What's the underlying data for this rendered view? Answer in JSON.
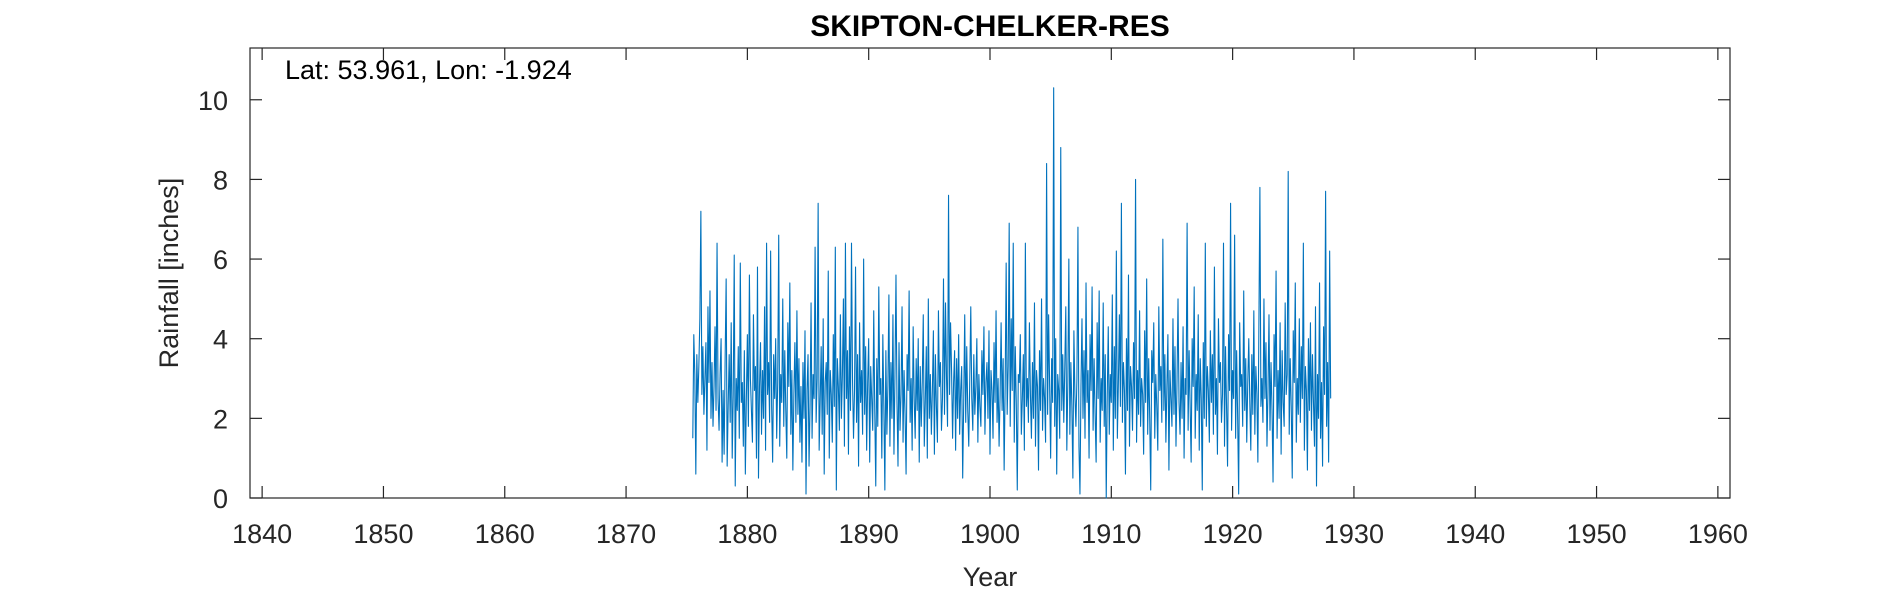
{
  "chart_data": {
    "type": "line",
    "title": "SKIPTON-CHELKER-RES",
    "xlabel": "Year",
    "ylabel": "Rainfall [inches]",
    "annotation": "Lat: 53.961, Lon: -1.924",
    "xlim": [
      1839,
      1961
    ],
    "ylim": [
      0,
      11.3
    ],
    "xticks": [
      1840,
      1850,
      1860,
      1870,
      1880,
      1890,
      1900,
      1910,
      1920,
      1930,
      1940,
      1950,
      1960
    ],
    "yticks": [
      0,
      2,
      4,
      6,
      8,
      10
    ],
    "grid": false,
    "series_color": "#0072BD",
    "series": [
      {
        "start_year": 1875.5,
        "step_years": 0.08333,
        "values": [
          1.5,
          4.1,
          3.1,
          0.6,
          3.6,
          2.4,
          3.3,
          4.5,
          7.2,
          2.6,
          3.8,
          2.1,
          3.0,
          3.9,
          1.2,
          4.8,
          2.9,
          5.2,
          2.0,
          3.4,
          1.8,
          2.8,
          4.3,
          2.2,
          6.4,
          2.5,
          1.7,
          3.1,
          4.0,
          0.9,
          2.7,
          1.1,
          3.5,
          5.5,
          0.8,
          2.3,
          3.6,
          1.9,
          4.4,
          1.0,
          2.6,
          6.1,
          0.3,
          3.0,
          2.2,
          3.8,
          1.5,
          5.9,
          2.4,
          2.9,
          1.3,
          3.7,
          0.6,
          2.5,
          4.1,
          1.8,
          5.6,
          3.0,
          2.2,
          1.4,
          4.6,
          2.7,
          3.3,
          1.0,
          5.8,
          0.5,
          2.8,
          3.9,
          1.6,
          3.2,
          2.0,
          4.8,
          1.2,
          6.4,
          2.6,
          3.4,
          1.9,
          6.2,
          2.3,
          0.9,
          3.6,
          2.5,
          4.0,
          1.5,
          2.9,
          6.6,
          1.3,
          3.1,
          2.4,
          5.0,
          1.8,
          3.7,
          2.2,
          1.0,
          4.4,
          2.8,
          5.4,
          1.6,
          3.2,
          0.7,
          2.6,
          3.9,
          1.9,
          4.7,
          2.1,
          3.5,
          1.4,
          2.8,
          0.9,
          3.4,
          2.0,
          4.2,
          0.1,
          2.7,
          3.6,
          0.8,
          2.3,
          4.9,
          1.5,
          3.1,
          2.5,
          6.3,
          1.9,
          3.0,
          7.4,
          1.2,
          2.4,
          3.8,
          1.6,
          4.5,
          0.6,
          2.9,
          3.4,
          2.1,
          5.7,
          1.0,
          3.2,
          2.6,
          1.4,
          4.1,
          2.3,
          6.3,
          0.2,
          3.5,
          2.8,
          1.7,
          4.6,
          2.0,
          3.1,
          5.0,
          1.3,
          6.4,
          2.5,
          3.7,
          1.1,
          4.3,
          2.2,
          6.4,
          3.0,
          1.5,
          2.7,
          5.8,
          1.9,
          3.6,
          0.8,
          4.4,
          2.4,
          3.2,
          1.6,
          6.0,
          2.1,
          3.8,
          1.2,
          2.9,
          4.0,
          0.9,
          3.3,
          2.5,
          1.7,
          4.7,
          2.2,
          0.3,
          3.5,
          1.8,
          5.3,
          2.6,
          3.0,
          1.0,
          4.1,
          2.3,
          0.2,
          3.7,
          1.6,
          2.8,
          5.1,
          1.3,
          3.4,
          2.0,
          4.6,
          1.1,
          3.1,
          5.6,
          2.4,
          0.8,
          3.9,
          1.7,
          2.6,
          4.8,
          1.4,
          3.2,
          2.1,
          0.6,
          3.6,
          2.7,
          5.2,
          1.9,
          3.0,
          1.2,
          4.3,
          2.5,
          1.5,
          3.5,
          2.2,
          4.0,
          0.9,
          3.3,
          1.8,
          2.9,
          4.6,
          1.3,
          2.4,
          3.8,
          1.0,
          5.0,
          2.0,
          3.1,
          1.6,
          2.7,
          4.2,
          1.1,
          3.6,
          2.3,
          1.4,
          4.7,
          2.8,
          3.4,
          1.7,
          2.5,
          5.5,
          2.1,
          4.9,
          3.0,
          1.8,
          7.6,
          2.6,
          4.4,
          3.2,
          1.5,
          2.9,
          3.7,
          1.2,
          3.5,
          2.0,
          4.1,
          1.6,
          2.7,
          3.3,
          0.5,
          2.4,
          4.6,
          1.9,
          3.8,
          2.2,
          1.3,
          3.0,
          4.8,
          2.5,
          1.7,
          3.6,
          2.1,
          2.8,
          4.0,
          1.4,
          3.1,
          2.3,
          1.8,
          3.7,
          2.6,
          4.3,
          1.6,
          2.9,
          3.4,
          2.0,
          4.2,
          1.1,
          3.2,
          2.7,
          1.5,
          3.9,
          2.4,
          4.7,
          1.9,
          3.0,
          1.3,
          2.6,
          4.4,
          2.2,
          3.5,
          0.7,
          2.8,
          5.9,
          2.1,
          3.3,
          6.9,
          1.8,
          4.5,
          2.7,
          6.4,
          1.4,
          3.8,
          2.4,
          0.2,
          3.1,
          2.9,
          4.1,
          1.6,
          2.5,
          3.6,
          1.2,
          6.4,
          2.3,
          3.0,
          1.9,
          4.4,
          2.6,
          1.5,
          3.4,
          2.0,
          4.9,
          1.3,
          3.2,
          2.8,
          0.7,
          3.7,
          2.2,
          5.0,
          1.7,
          3.0,
          2.5,
          1.4,
          8.4,
          2.1,
          4.6,
          2.8,
          1.0,
          3.5,
          2.4,
          10.3,
          1.8,
          4.0,
          0.6,
          3.1,
          2.7,
          1.5,
          8.8,
          2.2,
          3.6,
          1.9,
          3.3,
          4.8,
          1.2,
          2.9,
          6.0,
          1.6,
          3.4,
          2.3,
          0.5,
          4.2,
          2.6,
          1.8,
          3.0,
          6.8,
          1.3,
          0.1,
          2.8,
          4.5,
          2.0,
          3.7,
          1.5,
          5.4,
          2.4,
          3.2,
          1.0,
          4.1,
          2.7,
          5.3,
          1.7,
          3.5,
          2.1,
          0.9,
          4.4,
          2.5,
          5.2,
          1.4,
          3.0,
          2.2,
          4.9,
          1.8,
          3.6,
          0.0,
          2.6,
          4.3,
          1.6,
          3.1,
          2.4,
          5.1,
          1.2,
          3.8,
          2.0,
          6.2,
          1.5,
          2.9,
          4.6,
          2.3,
          7.4,
          1.9,
          3.4,
          2.7,
          0.6,
          4.0,
          2.2,
          5.6,
          1.3,
          3.3,
          2.8,
          1.7,
          3.9,
          2.5,
          8.0,
          1.4,
          3.2,
          2.1,
          4.7,
          1.8,
          3.0,
          2.6,
          1.1,
          4.2,
          2.4,
          5.5,
          1.6,
          3.5,
          2.0,
          0.2,
          3.7,
          2.9,
          4.4,
          1.5,
          3.1,
          2.3,
          1.2,
          4.8,
          2.7,
          3.3,
          1.9,
          6.5,
          2.2,
          3.6,
          1.4,
          2.8,
          4.1,
          0.7,
          3.2,
          2.5,
          1.8,
          4.5,
          2.1,
          3.8,
          1.3,
          2.9,
          5.0,
          2.4,
          1.6,
          3.4,
          2.0,
          4.3,
          1.0,
          3.0,
          2.6,
          6.9,
          1.7,
          3.7,
          2.3,
          0.9,
          4.0,
          2.8,
          5.3,
          1.5,
          3.1,
          2.2,
          4.6,
          1.2,
          3.5,
          2.5,
          0.2,
          3.9,
          2.0,
          6.4,
          1.8,
          3.3,
          2.7,
          1.4,
          4.2,
          2.4,
          3.6,
          1.6,
          5.8,
          2.1,
          3.0,
          1.1,
          4.5,
          2.9,
          3.4,
          1.9,
          2.6,
          6.4,
          1.3,
          3.8,
          2.3,
          0.8,
          4.1,
          2.7,
          7.4,
          1.7,
          3.2,
          2.5,
          6.6,
          1.5,
          3.7,
          2.0,
          0.1,
          4.4,
          2.8,
          3.1,
          1.8,
          5.2,
          2.2,
          3.5,
          1.4,
          2.9,
          4.0,
          2.4,
          1.2,
          3.6,
          2.1,
          4.7,
          1.6,
          3.3,
          2.6,
          0.9,
          4.3,
          7.8,
          2.3,
          3.0,
          1.9,
          5.0,
          2.5,
          3.9,
          1.3,
          2.7,
          4.6,
          1.7,
          3.4,
          2.2,
          0.4,
          4.1,
          2.8,
          5.7,
          1.5,
          3.2,
          2.0,
          4.4,
          1.1,
          3.7,
          2.4,
          1.8,
          4.9,
          2.6,
          3.1,
          8.2,
          1.6,
          3.5,
          2.3,
          0.5,
          4.2,
          2.9,
          5.4,
          1.4,
          3.0,
          2.1,
          4.5,
          1.9,
          3.8,
          2.5,
          6.4,
          1.2,
          3.3,
          2.7,
          0.7,
          4.0,
          2.2,
          4.4,
          1.7,
          3.6,
          2.4,
          1.3,
          4.8,
          0.3,
          3.1,
          2.0,
          5.4,
          1.5,
          2.9,
          0.8,
          4.3,
          2.6,
          7.7,
          1.8,
          3.4,
          0.9,
          6.2,
          2.5
        ]
      }
    ]
  }
}
